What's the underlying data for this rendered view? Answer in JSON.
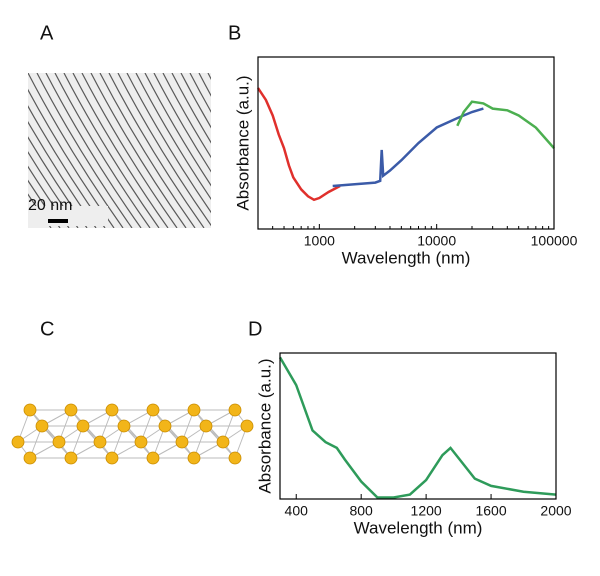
{
  "panels": {
    "A": {
      "label": "A",
      "scale_bar": "20 nm"
    },
    "C": {
      "label": "C"
    }
  },
  "chart_data": [
    {
      "type": "line",
      "label": "B",
      "xlabel": "Wavelength (nm)",
      "ylabel": "Absorbance (a.u.)",
      "xscale": "log",
      "xlim": [
        300,
        100000
      ],
      "xticks": [
        1000,
        10000,
        100000
      ],
      "ylim": [
        0,
        1
      ],
      "series": [
        {
          "color": "#e0302c",
          "x": [
            300,
            350,
            400,
            450,
            500,
            550,
            600,
            700,
            800,
            900,
            1000,
            1200,
            1500
          ],
          "values": [
            0.82,
            0.75,
            0.66,
            0.55,
            0.47,
            0.37,
            0.3,
            0.23,
            0.19,
            0.17,
            0.18,
            0.215,
            0.25
          ]
        },
        {
          "color": "#3b5ba8",
          "x": [
            1300,
            2000,
            3000,
            3300,
            3400,
            3500,
            4000,
            5000,
            7000,
            10000,
            15000,
            20000,
            25000
          ],
          "values": [
            0.25,
            0.26,
            0.27,
            0.28,
            0.46,
            0.31,
            0.34,
            0.4,
            0.5,
            0.59,
            0.645,
            0.68,
            0.7
          ]
        },
        {
          "color": "#4caf50",
          "x": [
            15000,
            17000,
            20000,
            25000,
            30000,
            40000,
            50000,
            70000,
            100000
          ],
          "values": [
            0.6,
            0.68,
            0.74,
            0.73,
            0.7,
            0.69,
            0.66,
            0.59,
            0.47
          ]
        }
      ]
    },
    {
      "type": "line",
      "label": "D",
      "xlabel": "Wavelength (nm)",
      "ylabel": "Absorbance (a.u.)",
      "xlim": [
        300,
        2000
      ],
      "xticks": [
        400,
        800,
        1200,
        1600,
        2000
      ],
      "ylim": [
        0,
        1
      ],
      "series": [
        {
          "color": "#2e9b5a",
          "x": [
            300,
            400,
            500,
            580,
            650,
            700,
            800,
            900,
            1000,
            1100,
            1200,
            1300,
            1350,
            1400,
            1500,
            1600,
            1800,
            2000
          ],
          "values": [
            0.97,
            0.78,
            0.47,
            0.39,
            0.35,
            0.27,
            0.12,
            0.01,
            0.01,
            0.03,
            0.13,
            0.3,
            0.35,
            0.28,
            0.14,
            0.09,
            0.05,
            0.03
          ]
        }
      ]
    }
  ]
}
